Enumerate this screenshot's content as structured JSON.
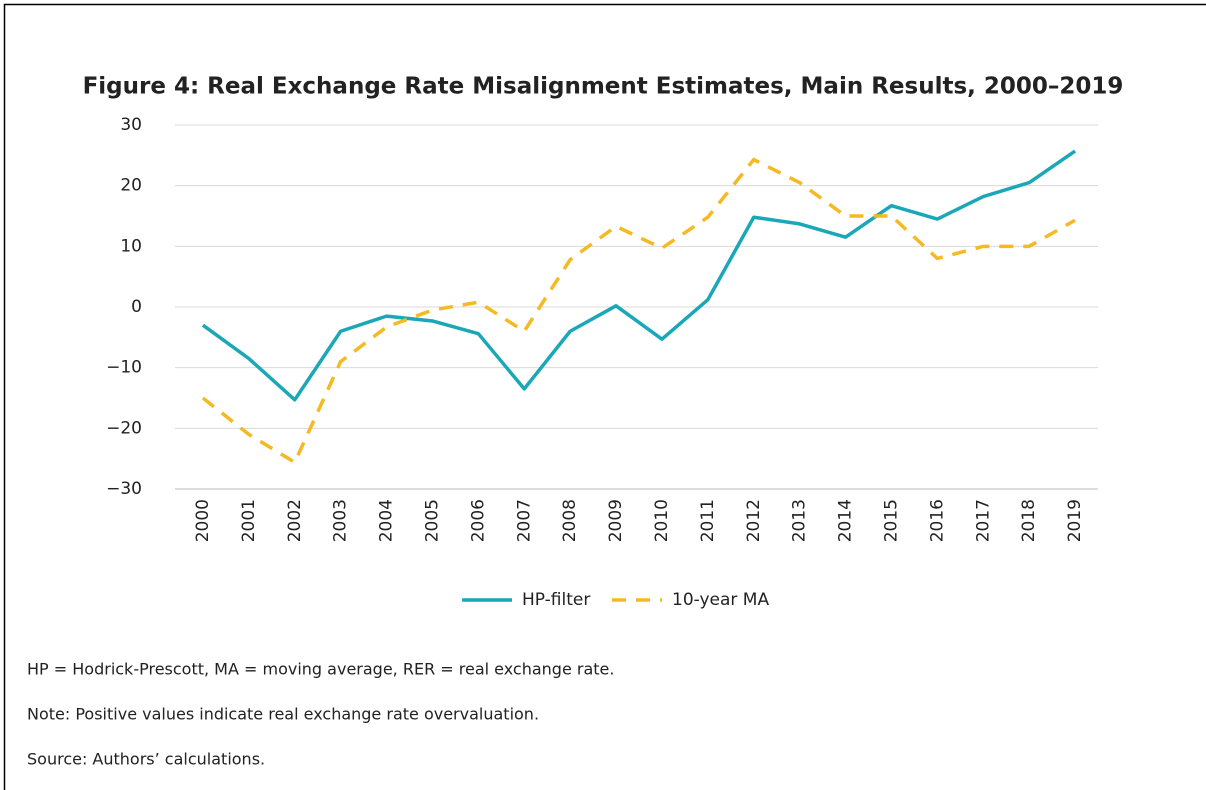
{
  "chart_data": {
    "type": "line",
    "title": "Figure 4: Real Exchange Rate Misalignment Estimates, Main Results, 2000–2019",
    "categories": [
      "2000",
      "2001",
      "2002",
      "2003",
      "2004",
      "2005",
      "2006",
      "2007",
      "2008",
      "2009",
      "2010",
      "2011",
      "2012",
      "2013",
      "2014",
      "2015",
      "2016",
      "2017",
      "2018",
      "2019"
    ],
    "series": [
      {
        "name": "HP-filter",
        "color": "#1aa7b8",
        "dash": false,
        "values": [
          -3,
          -8.5,
          -15.3,
          -4,
          -1.5,
          -2.3,
          -4.4,
          -13.5,
          -4,
          0.2,
          -5.3,
          1.2,
          14.8,
          13.7,
          11.5,
          16.7,
          14.5,
          18.2,
          20.5,
          25.7
        ]
      },
      {
        "name": "10-year MA",
        "color": "#f5b921",
        "dash": true,
        "values": [
          -15,
          -21,
          -25.6,
          -9,
          -3.3,
          -0.5,
          0.8,
          -4,
          7.8,
          13.3,
          9.7,
          14.8,
          24.3,
          20.5,
          15,
          15,
          8,
          10,
          10,
          14.3
        ]
      }
    ],
    "ylim": [
      -30,
      30
    ],
    "yticks": [
      {
        "value": -30,
        "label": "−30"
      },
      {
        "value": -20,
        "label": "−20"
      },
      {
        "value": -10,
        "label": "−10"
      },
      0,
      10,
      20,
      30
    ],
    "grid": true,
    "legend": "bottom"
  },
  "notes": [
    "HP = Hodrick-Prescott, MA = moving average, RER = real exchange rate.",
    "Note: Positive values indicate real exchange rate overvaluation.",
    "Source: Authors’ calculations."
  ]
}
